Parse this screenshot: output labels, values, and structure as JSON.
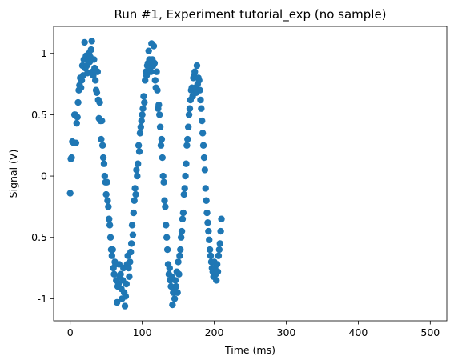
{
  "chart_data": {
    "type": "scatter",
    "title": "Run #1, Experiment tutorial_exp (no sample)",
    "xlabel": "Time (ms)",
    "ylabel": "Signal (V)",
    "xlim": [
      -23,
      523
    ],
    "ylim": [
      -1.18,
      1.22
    ],
    "xticks": [
      0,
      100,
      200,
      300,
      400,
      500
    ],
    "xtick_labels": [
      "0",
      "100",
      "200",
      "300",
      "400",
      "500"
    ],
    "yticks": [
      -1,
      -0.5,
      0,
      0.5,
      1
    ],
    "ytick_labels": [
      "-1",
      "-0.5",
      "0",
      "0.5",
      "1"
    ],
    "grid": false,
    "marker_color": "#1f77b4",
    "series": [
      {
        "points": [
          [
            0,
            -0.14
          ],
          [
            1,
            0.14
          ],
          [
            2,
            0.15
          ],
          [
            3,
            0.28
          ],
          [
            5,
            0.27
          ],
          [
            6,
            0.5
          ],
          [
            7,
            0.5
          ],
          [
            8,
            0.27
          ],
          [
            9,
            0.43
          ],
          [
            10,
            0.48
          ],
          [
            11,
            0.6
          ],
          [
            12,
            0.7
          ],
          [
            13,
            0.74
          ],
          [
            14,
            0.8
          ],
          [
            15,
            0.72
          ],
          [
            16,
            0.78
          ],
          [
            17,
            0.9
          ],
          [
            18,
            0.82
          ],
          [
            19,
            0.95
          ],
          [
            20,
            1.09
          ],
          [
            21,
            0.88
          ],
          [
            22,
            0.98
          ],
          [
            23,
            0.9
          ],
          [
            24,
            0.84
          ],
          [
            25,
            0.95
          ],
          [
            26,
            1.0
          ],
          [
            27,
            0.93
          ],
          [
            28,
            0.97
          ],
          [
            29,
            1.03
          ],
          [
            30,
            1.1
          ],
          [
            31,
            0.85
          ],
          [
            32,
            0.82
          ],
          [
            33,
            0.95
          ],
          [
            34,
            0.88
          ],
          [
            35,
            0.78
          ],
          [
            36,
            0.7
          ],
          [
            37,
            0.68
          ],
          [
            38,
            0.85
          ],
          [
            39,
            0.62
          ],
          [
            40,
            0.47
          ],
          [
            41,
            0.6
          ],
          [
            42,
            0.45
          ],
          [
            43,
            0.3
          ],
          [
            44,
            0.45
          ],
          [
            45,
            0.25
          ],
          [
            46,
            0.15
          ],
          [
            47,
            0.1
          ],
          [
            48,
            0.0
          ],
          [
            49,
            -0.05
          ],
          [
            50,
            -0.15
          ],
          [
            51,
            -0.05
          ],
          [
            52,
            -0.2
          ],
          [
            53,
            -0.25
          ],
          [
            54,
            -0.35
          ],
          [
            55,
            -0.4
          ],
          [
            56,
            -0.5
          ],
          [
            57,
            -0.6
          ],
          [
            58,
            -0.65
          ],
          [
            59,
            -0.6
          ],
          [
            60,
            -0.75
          ],
          [
            61,
            -0.8
          ],
          [
            62,
            -0.7
          ],
          [
            63,
            -0.72
          ],
          [
            64,
            -0.85
          ],
          [
            65,
            -1.03
          ],
          [
            66,
            -0.9
          ],
          [
            67,
            -0.88
          ],
          [
            68,
            -0.72
          ],
          [
            69,
            -0.82
          ],
          [
            70,
            -0.8
          ],
          [
            71,
            -0.92
          ],
          [
            72,
            -1.0
          ],
          [
            73,
            -0.85
          ],
          [
            74,
            -0.75
          ],
          [
            75,
            -0.95
          ],
          [
            76,
            -1.06
          ],
          [
            77,
            -0.98
          ],
          [
            78,
            -0.88
          ],
          [
            79,
            -0.72
          ],
          [
            80,
            -0.65
          ],
          [
            81,
            -0.75
          ],
          [
            82,
            -0.82
          ],
          [
            83,
            -0.7
          ],
          [
            84,
            -0.62
          ],
          [
            85,
            -0.55
          ],
          [
            86,
            -0.4
          ],
          [
            87,
            -0.48
          ],
          [
            88,
            -0.3
          ],
          [
            89,
            -0.2
          ],
          [
            90,
            -0.1
          ],
          [
            91,
            -0.15
          ],
          [
            92,
            0.05
          ],
          [
            93,
            0.0
          ],
          [
            94,
            0.1
          ],
          [
            95,
            0.25
          ],
          [
            96,
            0.2
          ],
          [
            97,
            0.35
          ],
          [
            98,
            0.4
          ],
          [
            99,
            0.45
          ],
          [
            100,
            0.5
          ],
          [
            101,
            0.55
          ],
          [
            102,
            0.65
          ],
          [
            103,
            0.6
          ],
          [
            104,
            0.78
          ],
          [
            105,
            0.85
          ],
          [
            106,
            0.82
          ],
          [
            107,
            0.9
          ],
          [
            108,
            0.92
          ],
          [
            109,
            1.02
          ],
          [
            110,
            0.95
          ],
          [
            111,
            0.88
          ],
          [
            112,
            0.85
          ],
          [
            113,
            1.08
          ],
          [
            114,
            0.95
          ],
          [
            115,
            0.9
          ],
          [
            116,
            1.06
          ],
          [
            117,
            0.92
          ],
          [
            118,
            0.78
          ],
          [
            119,
            0.72
          ],
          [
            120,
            0.85
          ],
          [
            121,
            0.7
          ],
          [
            122,
            0.55
          ],
          [
            123,
            0.58
          ],
          [
            124,
            0.5
          ],
          [
            125,
            0.4
          ],
          [
            126,
            0.25
          ],
          [
            127,
            0.3
          ],
          [
            128,
            0.15
          ],
          [
            129,
            0.0
          ],
          [
            130,
            -0.05
          ],
          [
            131,
            -0.2
          ],
          [
            132,
            -0.25
          ],
          [
            133,
            -0.4
          ],
          [
            134,
            -0.5
          ],
          [
            135,
            -0.6
          ],
          [
            136,
            -0.72
          ],
          [
            137,
            -0.8
          ],
          [
            138,
            -0.75
          ],
          [
            139,
            -0.85
          ],
          [
            140,
            -0.9
          ],
          [
            141,
            -0.82
          ],
          [
            142,
            -1.05
          ],
          [
            143,
            -0.95
          ],
          [
            144,
            -0.92
          ],
          [
            145,
            -1.0
          ],
          [
            146,
            -0.85
          ],
          [
            147,
            -0.9
          ],
          [
            148,
            -0.78
          ],
          [
            149,
            -0.95
          ],
          [
            150,
            -0.7
          ],
          [
            151,
            -0.8
          ],
          [
            152,
            -0.65
          ],
          [
            153,
            -0.6
          ],
          [
            154,
            -0.5
          ],
          [
            155,
            -0.45
          ],
          [
            156,
            -0.35
          ],
          [
            157,
            -0.3
          ],
          [
            158,
            -0.15
          ],
          [
            159,
            -0.1
          ],
          [
            160,
            0.0
          ],
          [
            161,
            0.1
          ],
          [
            162,
            0.25
          ],
          [
            163,
            0.3
          ],
          [
            164,
            0.4
          ],
          [
            165,
            0.5
          ],
          [
            166,
            0.55
          ],
          [
            167,
            0.62
          ],
          [
            168,
            0.7
          ],
          [
            169,
            0.72
          ],
          [
            170,
            0.65
          ],
          [
            171,
            0.8
          ],
          [
            172,
            0.82
          ],
          [
            173,
            0.85
          ],
          [
            174,
            0.72
          ],
          [
            175,
            0.68
          ],
          [
            176,
            0.9
          ],
          [
            177,
            0.75
          ],
          [
            178,
            0.8
          ],
          [
            179,
            0.78
          ],
          [
            180,
            0.7
          ],
          [
            181,
            0.62
          ],
          [
            182,
            0.55
          ],
          [
            183,
            0.45
          ],
          [
            184,
            0.35
          ],
          [
            185,
            0.25
          ],
          [
            186,
            0.15
          ],
          [
            187,
            0.05
          ],
          [
            188,
            -0.1
          ],
          [
            189,
            -0.2
          ],
          [
            190,
            -0.3
          ],
          [
            191,
            -0.38
          ],
          [
            192,
            -0.45
          ],
          [
            193,
            -0.52
          ],
          [
            194,
            -0.6
          ],
          [
            195,
            -0.65
          ],
          [
            196,
            -0.7
          ],
          [
            197,
            -0.75
          ],
          [
            198,
            -0.78
          ],
          [
            199,
            -0.82
          ],
          [
            200,
            -0.7
          ],
          [
            201,
            -0.75
          ],
          [
            202,
            -0.8
          ],
          [
            203,
            -0.85
          ],
          [
            204,
            -0.72
          ],
          [
            205,
            -0.78
          ],
          [
            206,
            -0.65
          ],
          [
            207,
            -0.6
          ],
          [
            208,
            -0.55
          ],
          [
            209,
            -0.45
          ],
          [
            210,
            -0.35
          ]
        ]
      }
    ]
  }
}
